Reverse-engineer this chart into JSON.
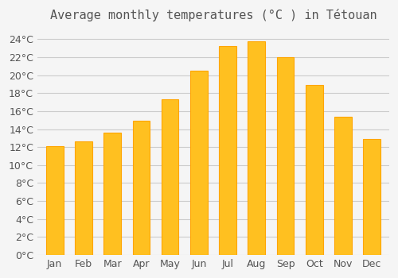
{
  "title": "Average monthly temperatures (°C ) in Tétouan",
  "months": [
    "Jan",
    "Feb",
    "Mar",
    "Apr",
    "May",
    "Jun",
    "Jul",
    "Aug",
    "Sep",
    "Oct",
    "Nov",
    "Dec"
  ],
  "values": [
    12.1,
    12.6,
    13.6,
    14.9,
    17.3,
    20.5,
    23.2,
    23.8,
    22.0,
    18.9,
    15.4,
    12.9
  ],
  "bar_color": "#FFC020",
  "bar_edge_color": "#FFA500",
  "background_color": "#F5F5F5",
  "grid_color": "#CCCCCC",
  "text_color": "#555555",
  "ylim": [
    0,
    25
  ],
  "ytick_step": 2,
  "title_fontsize": 11,
  "tick_fontsize": 9
}
